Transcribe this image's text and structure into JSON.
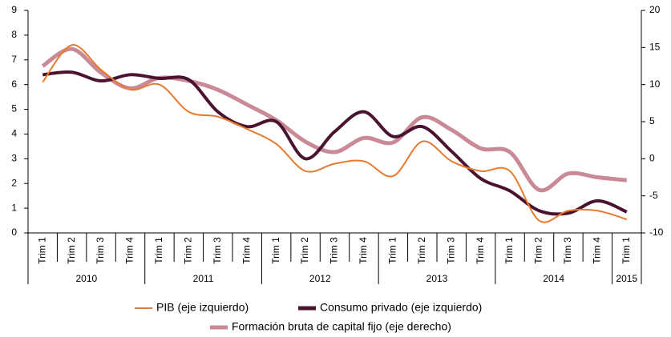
{
  "chart_data": {
    "type": "line",
    "groups": [
      {
        "name": "2010",
        "categories": [
          "Trim 1",
          "Trim 2",
          "Trim 3",
          "Trim 4"
        ]
      },
      {
        "name": "2011",
        "categories": [
          "Trim 1",
          "Trim 2",
          "Trim 3",
          "Trim 4"
        ]
      },
      {
        "name": "2012",
        "categories": [
          "Trim 1",
          "Trim 2",
          "Trim 3",
          "Trim 4"
        ]
      },
      {
        "name": "2013",
        "categories": [
          "Trim 1",
          "Trim 2",
          "Trim 3",
          "Trim 4"
        ]
      },
      {
        "name": "2014",
        "categories": [
          "Trim 1",
          "Trim 2",
          "Trim 3",
          "Trim 4"
        ]
      },
      {
        "name": "2015",
        "categories": [
          "Trim 1"
        ]
      }
    ],
    "series": [
      {
        "name": "PIB (eje izquierdo)",
        "color": "#e87a2d",
        "axis": "y",
        "values": [
          6.1,
          7.6,
          6.6,
          5.8,
          6.0,
          4.9,
          4.7,
          4.2,
          3.6,
          2.5,
          2.8,
          2.9,
          2.3,
          3.7,
          2.9,
          2.5,
          2.5,
          0.5,
          0.9,
          0.9,
          0.55
        ]
      },
      {
        "name": "Consumo privado (eje izquierdo)",
        "color": "#4a1430",
        "axis": "y",
        "values": [
          6.4,
          6.5,
          6.15,
          6.4,
          6.25,
          6.2,
          4.9,
          4.3,
          4.5,
          3.0,
          4.1,
          4.9,
          3.9,
          4.3,
          3.3,
          2.2,
          1.7,
          0.9,
          0.8,
          1.3,
          0.85
        ]
      },
      {
        "name": "Formación bruta de capital fijo (eje derecho)",
        "color": "#c98a96",
        "axis": "y2",
        "values": [
          12.5,
          14.8,
          11.6,
          9.5,
          10.9,
          10.5,
          9.3,
          7.3,
          5.2,
          2.3,
          0.9,
          2.8,
          2.2,
          5.6,
          3.9,
          1.4,
          0.9,
          -4.2,
          -2.0,
          -2.5,
          -2.9
        ]
      }
    ],
    "ylim": [
      0,
      9
    ],
    "yticks": [
      0,
      1,
      2,
      3,
      4,
      5,
      6,
      7,
      8,
      9
    ],
    "y2lim": [
      -10,
      20
    ],
    "y2ticks": [
      -10,
      -5,
      0,
      5,
      10,
      15,
      20
    ],
    "grid": false
  }
}
